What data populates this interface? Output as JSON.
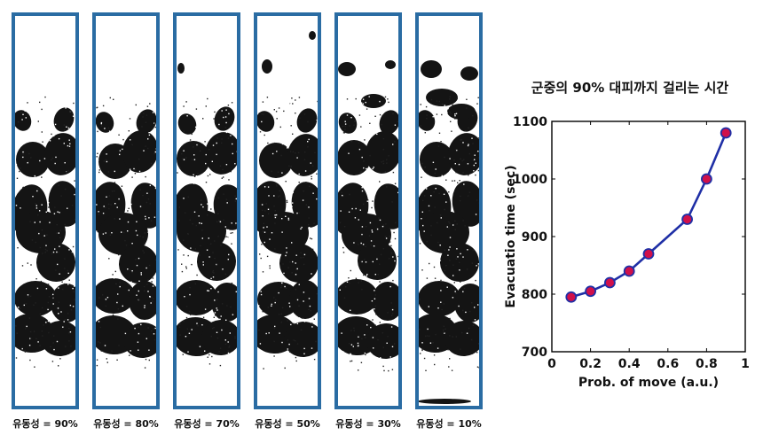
{
  "panels": [
    {
      "label": "유동성 = 90%"
    },
    {
      "label": "유동성 = 80%"
    },
    {
      "label": "유동성 = 70%"
    },
    {
      "label": "유동성 = 50%"
    },
    {
      "label": "유동성 = 30%"
    },
    {
      "label": "유동성 = 10%"
    }
  ],
  "chart_data": {
    "type": "line",
    "title": "군중의 90% 대피까지 걸리는 시간",
    "xlabel": "Prob. of move (a.u.)",
    "ylabel": "Evacuatio time (sec)",
    "xlim": [
      0,
      1
    ],
    "ylim": [
      700,
      1100
    ],
    "xticks": [
      0,
      0.2,
      0.4,
      0.6,
      0.8,
      1
    ],
    "xtick_labels": [
      "0",
      "0.2",
      "0.4",
      "0.6",
      "0.8",
      "1"
    ],
    "yticks": [
      700,
      800,
      900,
      1000,
      1100
    ],
    "ytick_labels": [
      "700",
      "800",
      "900",
      "1000",
      "1100"
    ],
    "grid": false,
    "series": [
      {
        "x": [
          0.1,
          0.2,
          0.3,
          0.4,
          0.5,
          0.7,
          0.8,
          0.9
        ],
        "y": [
          795,
          805,
          820,
          840,
          870,
          930,
          1000,
          1080
        ],
        "line_color": "#1f2fa6",
        "marker_color": "#d0104a"
      }
    ]
  }
}
